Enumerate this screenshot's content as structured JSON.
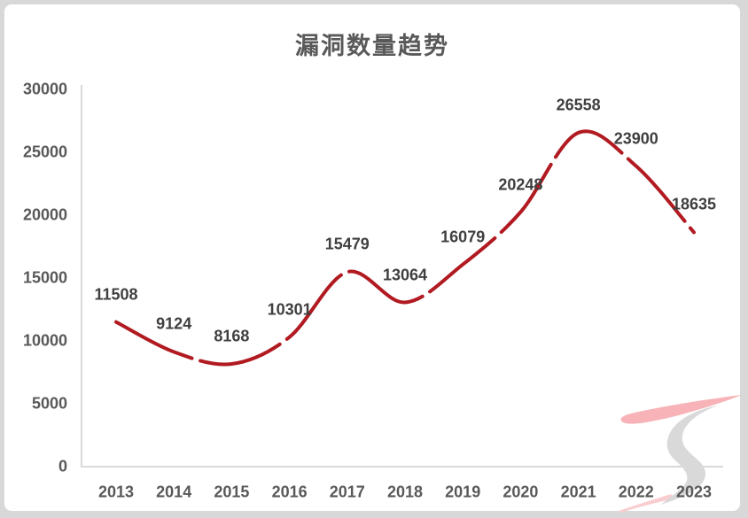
{
  "page": {
    "background_color": "#d8d8d8",
    "card_background_color": "#ffffff"
  },
  "title": "漏洞数量趋势",
  "chart_data": {
    "type": "line",
    "title": "漏洞数量趋势",
    "categories": [
      "2013",
      "2014",
      "2015",
      "2016",
      "2017",
      "2018",
      "2019",
      "2020",
      "2021",
      "2022",
      "2023"
    ],
    "values": [
      11508,
      9124,
      8168,
      10301,
      15479,
      13064,
      16079,
      20248,
      26558,
      23900,
      18635
    ],
    "xlabel": "",
    "ylabel": "",
    "ylim": [
      0,
      30000
    ],
    "yticks": [
      0,
      5000,
      10000,
      15000,
      20000,
      25000,
      30000
    ],
    "grid": false,
    "legend": null,
    "smooth": true,
    "line_style": "dashed",
    "line_color": "#b11a21",
    "data_label_color": "#3f3f3f",
    "tick_label_color": "#595959",
    "axis_line_color": "#d9d9d9",
    "title_color": "#595959"
  },
  "watermark": {
    "description": "brush-stroke-logo",
    "pink_color": "#f7b3b7",
    "pink_faint_color": "#f9cdd0",
    "gray_color": "#d9d9d9"
  }
}
